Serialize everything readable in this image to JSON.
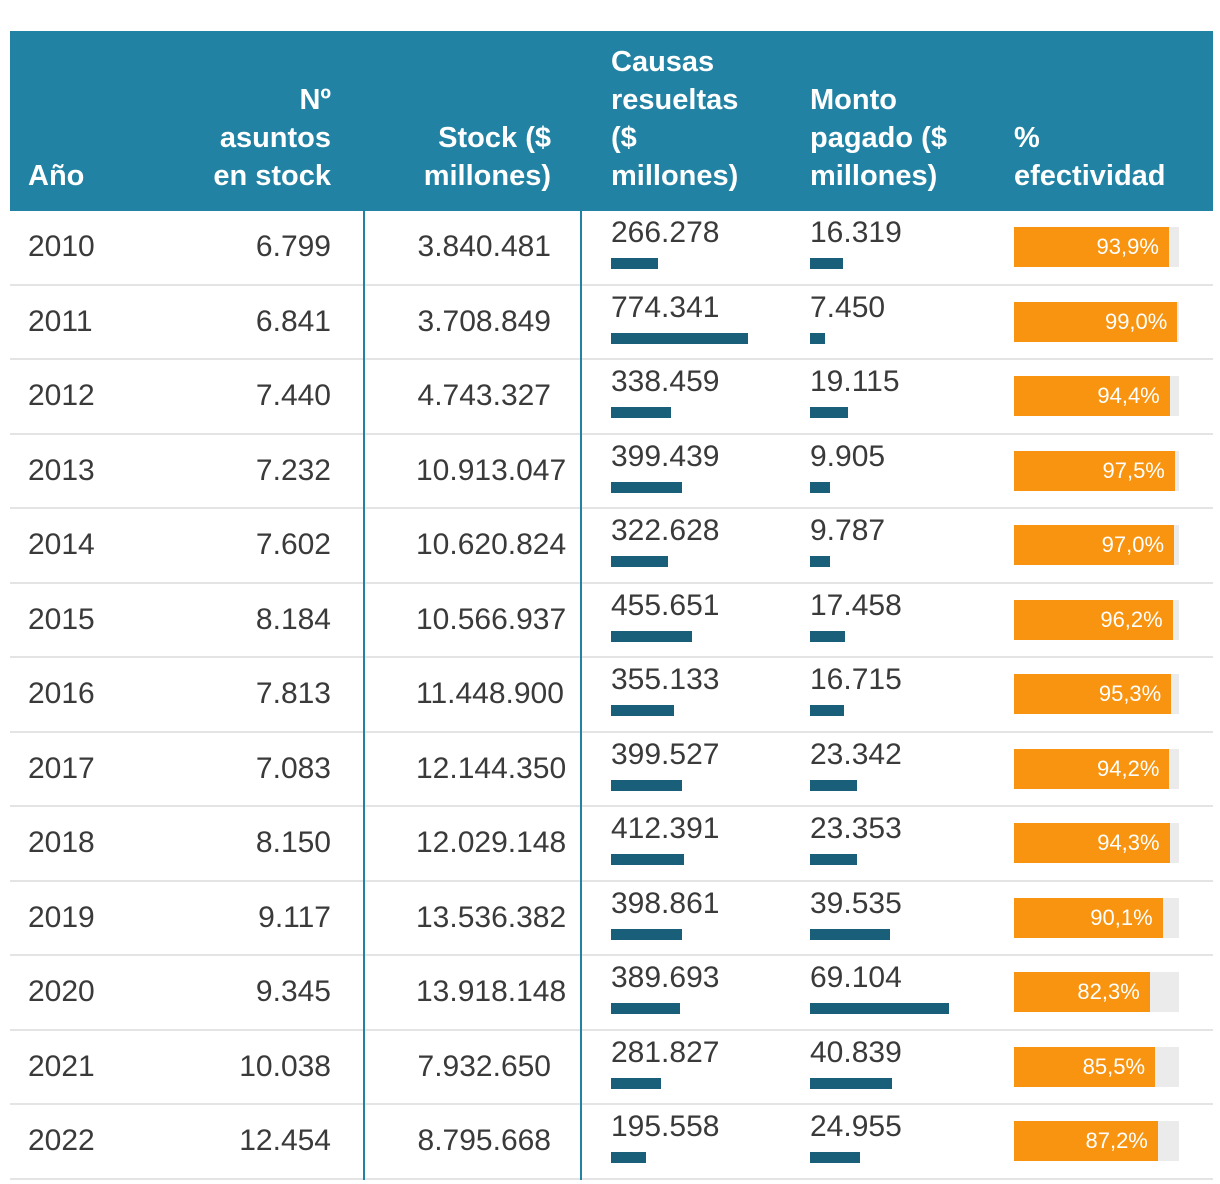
{
  "colors": {
    "header_bg": "#2182A3",
    "column_line": "#2182A3",
    "mini_bar": "#1A5F7A",
    "efectividad_bar": "#F8940F",
    "efectividad_track": "#EBEBEB",
    "row_divider": "#E4E4E4",
    "body_text": "#3A3A3A",
    "header_text": "#FFFFFF"
  },
  "header": {
    "col_year": "Año",
    "col_n_asuntos": "Nº asuntos en stock",
    "col_stock": "Stock ($ millones)",
    "col_causas": "Causas resueltas ($ millones)",
    "col_monto": "Monto pagado ($ millones)",
    "col_efectividad": "% efectividad"
  },
  "chart_data": {
    "type": "table",
    "title": "",
    "columns": [
      "Año",
      "Nº asuntos en stock",
      "Stock ($ millones)",
      "Causas resueltas ($ millones)",
      "Monto pagado ($ millones)",
      "% efectividad"
    ],
    "embedded_bars": {
      "causas_resueltas": {
        "type": "bar",
        "scaled_to_column_max": true
      },
      "monto_pagado": {
        "type": "bar",
        "scaled_to_column_max": true
      },
      "efectividad": {
        "type": "bar",
        "range": [
          0,
          100
        ],
        "unit": "%"
      }
    },
    "rows": [
      {
        "año": "2010",
        "n_asuntos": "6.799",
        "stock": "3.840.481",
        "causas_resueltas": "266.278",
        "causas_valor": 266278,
        "monto_pagado": "16.319",
        "monto_valor": 16319,
        "efectividad": "93,9%",
        "efectividad_valor": 93.9
      },
      {
        "año": "2011",
        "n_asuntos": "6.841",
        "stock": "3.708.849",
        "causas_resueltas": "774.341",
        "causas_valor": 774341,
        "monto_pagado": "7.450",
        "monto_valor": 7450,
        "efectividad": "99,0%",
        "efectividad_valor": 99.0
      },
      {
        "año": "2012",
        "n_asuntos": "7.440",
        "stock": "4.743.327",
        "causas_resueltas": "338.459",
        "causas_valor": 338459,
        "monto_pagado": "19.115",
        "monto_valor": 19115,
        "efectividad": "94,4%",
        "efectividad_valor": 94.4
      },
      {
        "año": "2013",
        "n_asuntos": "7.232",
        "stock": "10.913.047",
        "causas_resueltas": "399.439",
        "causas_valor": 399439,
        "monto_pagado": "9.905",
        "monto_valor": 9905,
        "efectividad": "97,5%",
        "efectividad_valor": 97.5
      },
      {
        "año": "2014",
        "n_asuntos": "7.602",
        "stock": "10.620.824",
        "causas_resueltas": "322.628",
        "causas_valor": 322628,
        "monto_pagado": "9.787",
        "monto_valor": 9787,
        "efectividad": "97,0%",
        "efectividad_valor": 97.0
      },
      {
        "año": "2015",
        "n_asuntos": "8.184",
        "stock": "10.566.937",
        "causas_resueltas": "455.651",
        "causas_valor": 455651,
        "monto_pagado": "17.458",
        "monto_valor": 17458,
        "efectividad": "96,2%",
        "efectividad_valor": 96.2
      },
      {
        "año": "2016",
        "n_asuntos": "7.813",
        "stock": "11.448.900",
        "causas_resueltas": "355.133",
        "causas_valor": 355133,
        "monto_pagado": "16.715",
        "monto_valor": 16715,
        "efectividad": "95,3%",
        "efectividad_valor": 95.3
      },
      {
        "año": "2017",
        "n_asuntos": "7.083",
        "stock": "12.144.350",
        "causas_resueltas": "399.527",
        "causas_valor": 399527,
        "monto_pagado": "23.342",
        "monto_valor": 23342,
        "efectividad": "94,2%",
        "efectividad_valor": 94.2
      },
      {
        "año": "2018",
        "n_asuntos": "8.150",
        "stock": "12.029.148",
        "causas_resueltas": "412.391",
        "causas_valor": 412391,
        "monto_pagado": "23.353",
        "monto_valor": 23353,
        "efectividad": "94,3%",
        "efectividad_valor": 94.3
      },
      {
        "año": "2019",
        "n_asuntos": "9.117",
        "stock": "13.536.382",
        "causas_resueltas": "398.861",
        "causas_valor": 398861,
        "monto_pagado": "39.535",
        "monto_valor": 39535,
        "efectividad": "90,1%",
        "efectividad_valor": 90.1
      },
      {
        "año": "2020",
        "n_asuntos": "9.345",
        "stock": "13.918.148",
        "causas_resueltas": "389.693",
        "causas_valor": 389693,
        "monto_pagado": "69.104",
        "monto_valor": 69104,
        "efectividad": "82,3%",
        "efectividad_valor": 82.3
      },
      {
        "año": "2021",
        "n_asuntos": "10.038",
        "stock": "7.932.650",
        "causas_resueltas": "281.827",
        "causas_valor": 281827,
        "monto_pagado": "40.839",
        "monto_valor": 40839,
        "efectividad": "85,5%",
        "efectividad_valor": 85.5
      },
      {
        "año": "2022",
        "n_asuntos": "12.454",
        "stock": "8.795.668",
        "causas_resueltas": "195.558",
        "causas_valor": 195558,
        "monto_pagado": "24.955",
        "monto_valor": 24955,
        "efectividad": "87,2%",
        "efectividad_valor": 87.2
      }
    ]
  }
}
